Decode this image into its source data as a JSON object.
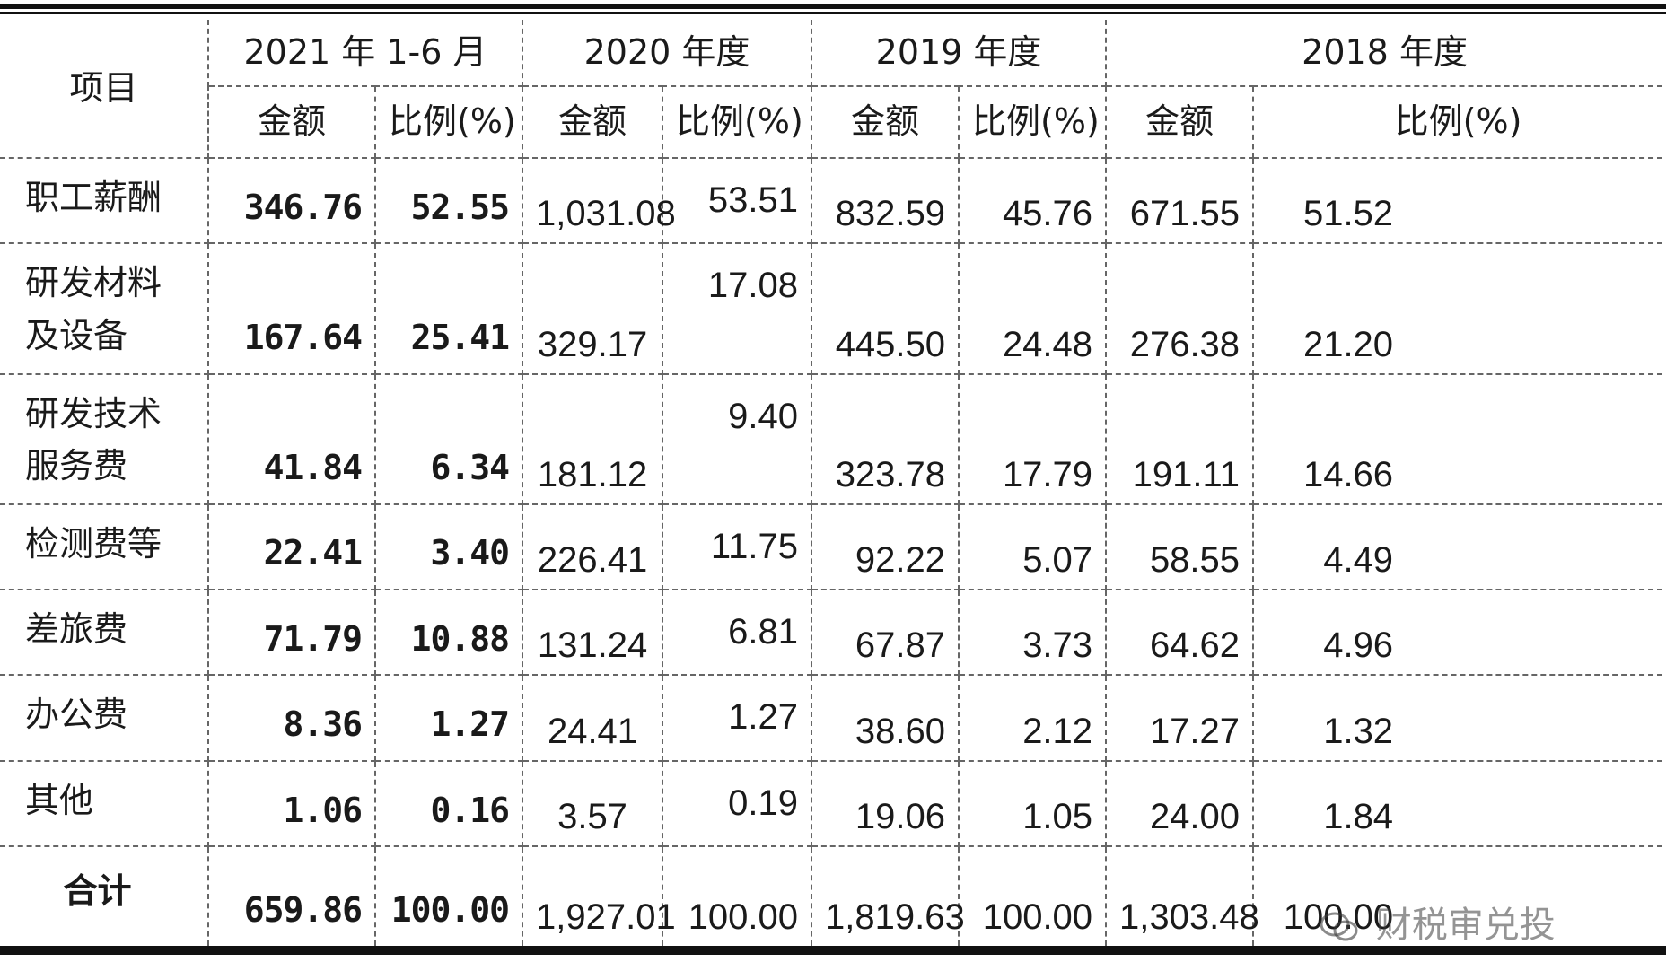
{
  "table": {
    "item_header": "项目",
    "periods": [
      "2021 年 1-6 月",
      "2020 年度",
      "2019 年度",
      "2018 年度"
    ],
    "sub_headers": {
      "amount": "金额",
      "ratio": "比例(%)"
    },
    "rows": [
      {
        "item": "职工薪酬",
        "v2021": "346.76",
        "p2021": "52.55",
        "v2020": "1,031.08",
        "p2020": "53.51",
        "v2019": "832.59",
        "p2019": "45.76",
        "v2018": "671.55",
        "p2018": "51.52"
      },
      {
        "item": "研发材料及设备",
        "v2021": "167.64",
        "p2021": "25.41",
        "v2020": "329.17",
        "p2020": "17.08",
        "v2019": "445.50",
        "p2019": "24.48",
        "v2018": "276.38",
        "p2018": "21.20"
      },
      {
        "item": "研发技术服务费",
        "v2021": "41.84",
        "p2021": "6.34",
        "v2020": "181.12",
        "p2020": "9.40",
        "v2019": "323.78",
        "p2019": "17.79",
        "v2018": "191.11",
        "p2018": "14.66"
      },
      {
        "item": "检测费等",
        "v2021": "22.41",
        "p2021": "3.40",
        "v2020": "226.41",
        "p2020": "11.75",
        "v2019": "92.22",
        "p2019": "5.07",
        "v2018": "58.55",
        "p2018": "4.49"
      },
      {
        "item": "差旅费",
        "v2021": "71.79",
        "p2021": "10.88",
        "v2020": "131.24",
        "p2020": "6.81",
        "v2019": "67.87",
        "p2019": "3.73",
        "v2018": "64.62",
        "p2018": "4.96"
      },
      {
        "item": "办公费",
        "v2021": "8.36",
        "p2021": "1.27",
        "v2020": "24.41",
        "p2020": "1.27",
        "v2019": "38.60",
        "p2019": "2.12",
        "v2018": "17.27",
        "p2018": "1.32"
      },
      {
        "item": "其他",
        "v2021": "1.06",
        "p2021": "0.16",
        "v2020": "3.57",
        "p2020": "0.19",
        "v2019": "19.06",
        "p2019": "1.05",
        "v2018": "24.00",
        "p2018": "1.84"
      }
    ],
    "total": {
      "item": "合计",
      "v2021": "659.86",
      "p2021": "100.00",
      "v2020": "1,927.01",
      "p2020": "100.00",
      "v2019": "1,819.63",
      "p2019": "100.00",
      "v2018": "1,303.48",
      "p2018": "100.00"
    }
  },
  "watermark": {
    "text": "财税审兑投",
    "icon": "wechat-icon"
  }
}
